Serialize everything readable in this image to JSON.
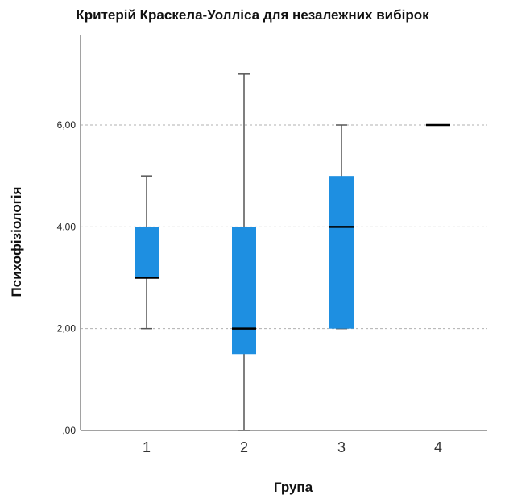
{
  "chart_data": {
    "type": "boxplot",
    "title": "Критерій Краскела-Уолліса для незалежних вибірок",
    "xlabel": "Група",
    "ylabel": "Психофізіологія",
    "categories": [
      "1",
      "2",
      "3",
      "4"
    ],
    "boxes": [
      {
        "category": "1",
        "min": 2,
        "q1": 3,
        "median": 3,
        "q3": 4,
        "max": 5
      },
      {
        "category": "2",
        "min": 0,
        "q1": 1.5,
        "median": 2,
        "q3": 4,
        "max": 7
      },
      {
        "category": "3",
        "min": 2,
        "q1": 2,
        "median": 4,
        "q3": 5,
        "max": 6
      },
      {
        "category": "4",
        "min": 6,
        "q1": 6,
        "median": 6,
        "q3": 6,
        "max": 6
      }
    ],
    "yticks": [
      {
        "value": 0,
        "label": ",00"
      },
      {
        "value": 2,
        "label": "2,00"
      },
      {
        "value": 4,
        "label": "4,00"
      },
      {
        "value": 6,
        "label": "6,00"
      }
    ],
    "ylim": [
      0,
      7.4
    ],
    "grid": true,
    "colors": {
      "box": "#1e8fe1",
      "median": "#000000",
      "whisker": "#555555",
      "grid": "#b0b0b0"
    }
  }
}
